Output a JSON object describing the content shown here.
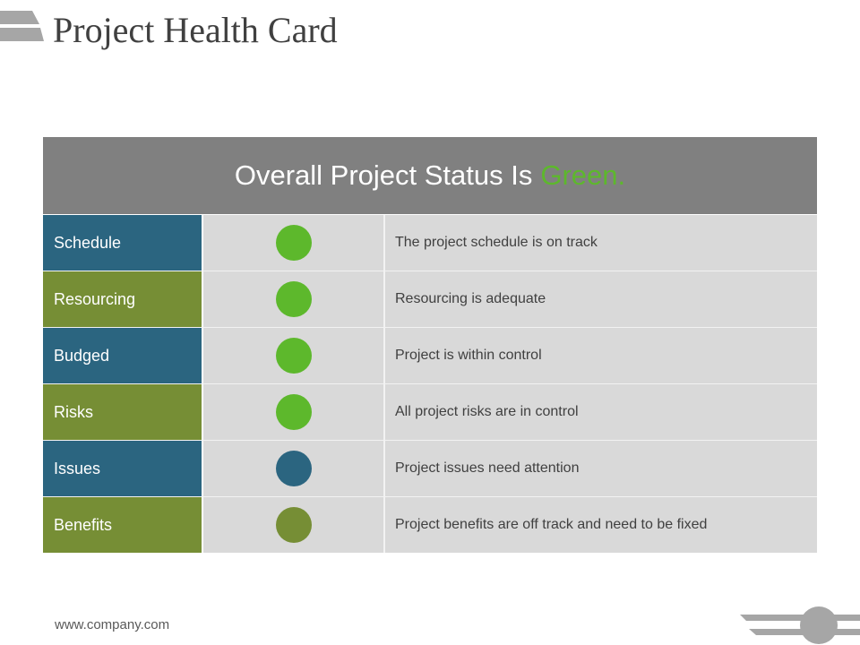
{
  "slide": {
    "title": "Project Health Card",
    "footer_url": "www.company.com"
  },
  "card": {
    "header_prefix": "Overall Project Status Is",
    "header_status_word": "Green.",
    "header_status_color": "#5db82c",
    "header_bg": "#808080",
    "rows": [
      {
        "label": "Schedule",
        "description": "The project schedule is on track",
        "label_bg": "#2b6580",
        "dot_color": "#5db82c"
      },
      {
        "label": "Resourcing",
        "description": "Resourcing is adequate",
        "label_bg": "#768e35",
        "dot_color": "#5db82c"
      },
      {
        "label": "Budged",
        "description": "Project is within control",
        "label_bg": "#2b6580",
        "dot_color": "#5db82c"
      },
      {
        "label": "Risks",
        "description": "All project risks are in control",
        "label_bg": "#768e35",
        "dot_color": "#5db82c"
      },
      {
        "label": "Issues",
        "description": "Project issues need attention",
        "label_bg": "#2b6580",
        "dot_color": "#2b6580"
      },
      {
        "label": "Benefits",
        "description": "Project benefits are off track and need to be fixed",
        "label_bg": "#768e35",
        "dot_color": "#768e35"
      }
    ]
  }
}
